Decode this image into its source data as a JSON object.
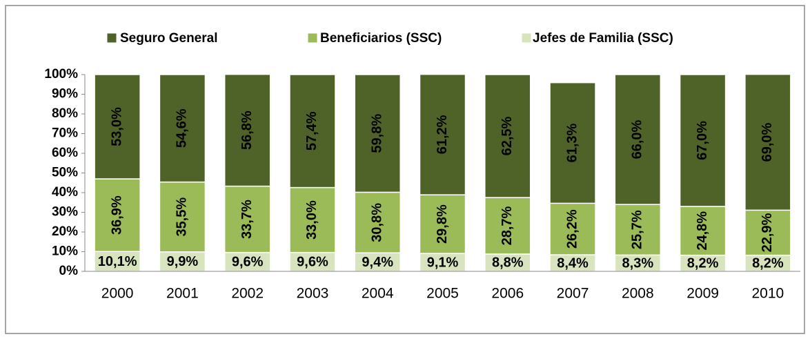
{
  "chart_data": {
    "type": "stacked_bar",
    "categories": [
      "2000",
      "2001",
      "2002",
      "2003",
      "2004",
      "2005",
      "2006",
      "2007",
      "2008",
      "2009",
      "2010"
    ],
    "series": [
      {
        "name": "Seguro General",
        "color": "#4f6228",
        "values": [
          53.0,
          54.6,
          56.8,
          57.4,
          59.8,
          61.2,
          62.5,
          61.3,
          66.0,
          67.0,
          69.0
        ],
        "value_labels": [
          "53,0%",
          "54,6%",
          "56,8%",
          "57,4%",
          "59,8%",
          "61,2%",
          "62,5%",
          "61,3%",
          "66,0%",
          "67,0%",
          "69,0%"
        ]
      },
      {
        "name": "Beneficiarios (SSC)",
        "color": "#9bbb59",
        "values": [
          36.9,
          35.5,
          33.7,
          33.0,
          30.8,
          29.8,
          28.7,
          26.2,
          25.7,
          24.8,
          22.9
        ],
        "value_labels": [
          "36,9%",
          "35,5%",
          "33,7%",
          "33,0%",
          "30,8%",
          "29,8%",
          "28,7%",
          "26,2%",
          "25,7%",
          "24,8%",
          "22,9%"
        ]
      },
      {
        "name": "Jefes de Familia (SSC)",
        "color": "#d7e4bd",
        "values": [
          10.1,
          9.9,
          9.6,
          9.6,
          9.4,
          9.1,
          8.8,
          8.4,
          8.3,
          8.2,
          8.2
        ],
        "value_labels": [
          "10,1%",
          "9,9%",
          "9,6%",
          "9,6%",
          "9,4%",
          "9,1%",
          "8,8%",
          "8,4%",
          "8,3%",
          "8,2%",
          "8,2%"
        ]
      }
    ],
    "ylim": [
      0,
      100
    ],
    "yticks": [
      {
        "value": 0,
        "label": "0%"
      },
      {
        "value": 10,
        "label": "10%"
      },
      {
        "value": 20,
        "label": "20%"
      },
      {
        "value": 30,
        "label": "30%"
      },
      {
        "value": 40,
        "label": "40%"
      },
      {
        "value": 50,
        "label": "50%"
      },
      {
        "value": 60,
        "label": "60%"
      },
      {
        "value": 70,
        "label": "70%"
      },
      {
        "value": 80,
        "label": "80%"
      },
      {
        "value": 90,
        "label": "90%"
      },
      {
        "value": 100,
        "label": "100%"
      }
    ],
    "legend": "top"
  }
}
